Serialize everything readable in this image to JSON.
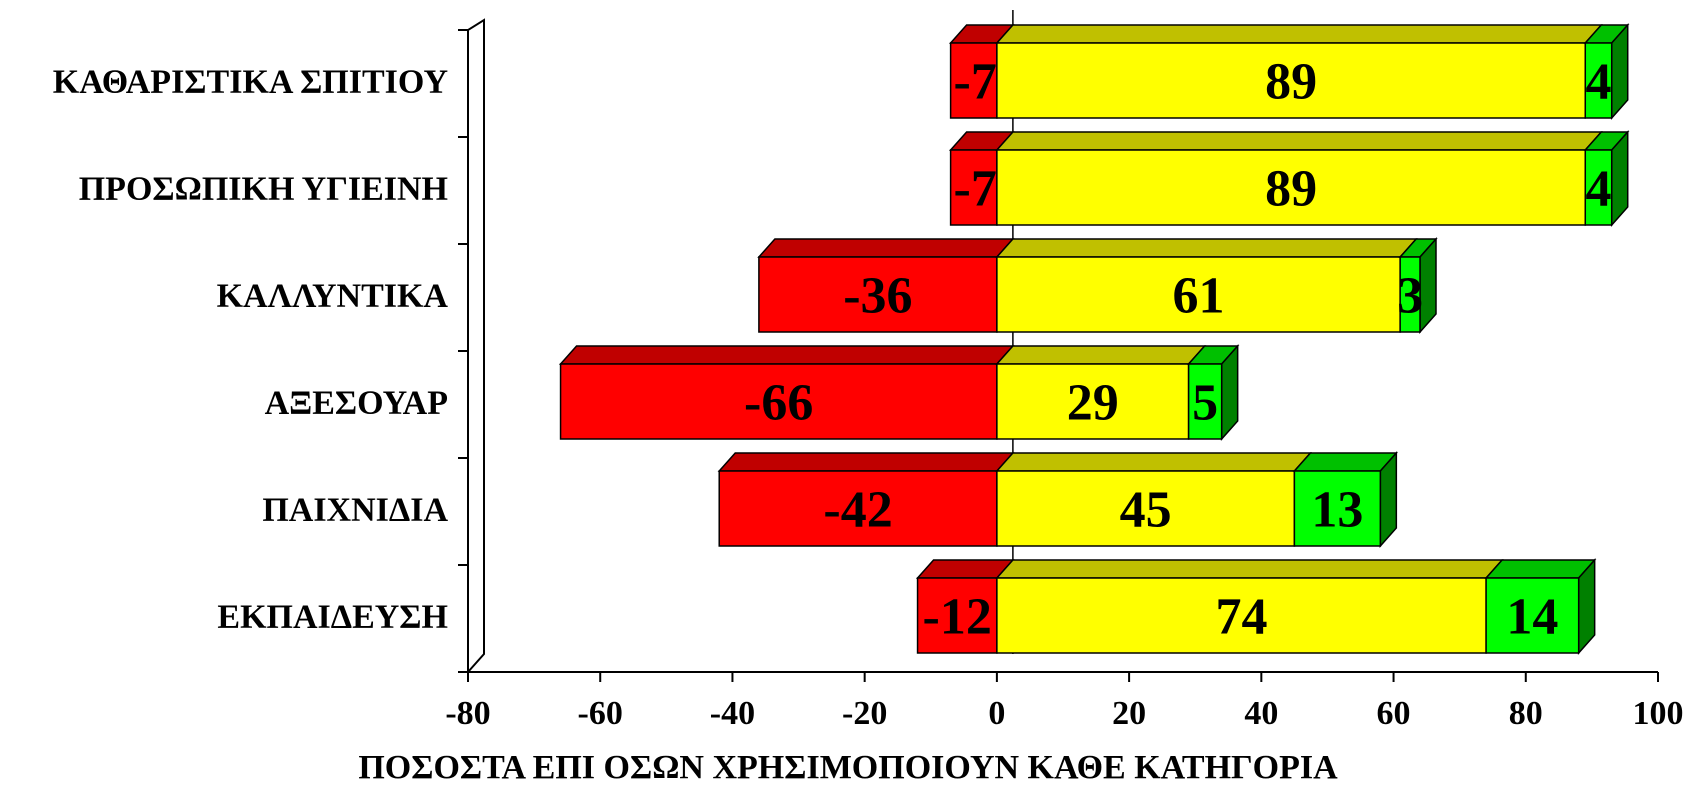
{
  "chart_data": {
    "type": "bar",
    "orientation": "horizontal",
    "stacked": true,
    "style": "3d",
    "categories": [
      "ΚΑΘΑΡΙΣΤΙΚΑ ΣΠΙΤΙΟΥ",
      "ΠΡΟΣΩΠΙΚΗ ΥΓΙΕΙΝΗ",
      "ΚΑΛΛΥΝΤΙΚΑ",
      "ΑΞΕΣΟΥΑΡ",
      "ΠΑΙΧΝΙΔΙΑ",
      "ΕΚΠΑΙΔΕΥΣΗ"
    ],
    "series": [
      {
        "values": [
          -7,
          -7,
          -36,
          -66,
          -42,
          -12
        ],
        "color": "#ff0000",
        "top_color": "#c00000",
        "side_color": "#a00000"
      },
      {
        "values": [
          89,
          89,
          61,
          29,
          45,
          74
        ],
        "color": "#ffff00",
        "top_color": "#c0c000",
        "side_color": "#a0a000"
      },
      {
        "values": [
          4,
          4,
          3,
          5,
          13,
          14
        ],
        "color": "#00ff00",
        "top_color": "#00c000",
        "side_color": "#008000"
      }
    ],
    "data_labels": [
      [
        "-7",
        "-7",
        "-36",
        "-66",
        "-42",
        "-12"
      ],
      [
        "89",
        "89",
        "61",
        "29",
        "45",
        "74"
      ],
      [
        "4",
        "4",
        "3",
        "5",
        "13",
        "14"
      ]
    ],
    "xlim": [
      -80,
      100
    ],
    "xticks": [
      -80,
      -60,
      -40,
      -20,
      0,
      20,
      40,
      60,
      80,
      100
    ],
    "xtick_labels": [
      "-80",
      "-60",
      "-40",
      "-20",
      "0",
      "20",
      "40",
      "60",
      "80",
      "100"
    ],
    "xlabel": "ΠΟΣΟΣΤΑ ΕΠΙ ΟΣΩΝ ΧΡΗΣΙΜΟΠΟΙΟΥΝ ΚΑΘΕ ΚΑΤΗΓΟΡΙΑ",
    "title": "",
    "ylabel": "",
    "legend": "none",
    "grid": false
  }
}
